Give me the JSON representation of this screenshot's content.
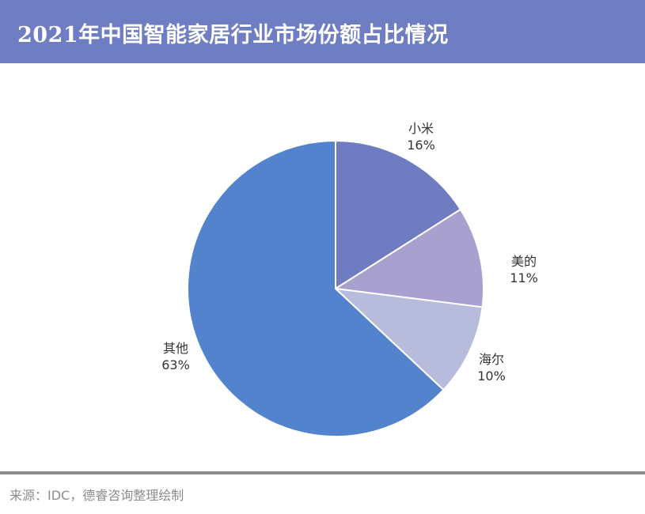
{
  "header": {
    "title": "2021年中国智能家居行业市场份额占比情况"
  },
  "colors": {
    "header_bg": "#6f7dc2",
    "footer_rule": "#8c8c8c",
    "source_text": "#8c8c8c"
  },
  "chart_data": {
    "type": "pie",
    "title": "2021年中国智能家居行业市场份额占比情况",
    "slices": [
      {
        "label": "小米",
        "value": 16,
        "value_label": "16%",
        "color": "#6f7cc2"
      },
      {
        "label": "美的",
        "value": 11,
        "value_label": "11%",
        "color": "#a8a1cf"
      },
      {
        "label": "海尔",
        "value": 10,
        "value_label": "10%",
        "color": "#b8bcdc"
      },
      {
        "label": "其他",
        "value": 63,
        "value_label": "63%",
        "color": "#5283cc"
      }
    ],
    "start_angle_deg": 0,
    "direction": "clockwise",
    "slice_border_color": "#ffffff",
    "legend": "none"
  },
  "footer": {
    "source": "来源：IDC，德睿咨询整理绘制"
  }
}
